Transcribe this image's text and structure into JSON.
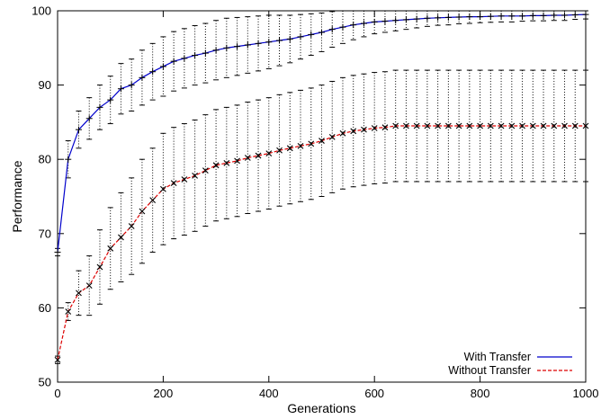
{
  "chart_data": {
    "type": "line",
    "title": "",
    "xlabel": "Generations",
    "ylabel": "Performance",
    "xlim": [
      0,
      1000
    ],
    "ylim": [
      50,
      100
    ],
    "xticks": [
      0,
      200,
      400,
      600,
      800,
      1000
    ],
    "yticks": [
      50,
      60,
      70,
      80,
      90,
      100
    ],
    "grid": false,
    "legend_position": "bottom-right",
    "series": [
      {
        "name": "With Transfer",
        "color": "#0000cc",
        "line_style": "solid",
        "marker": "plus",
        "x": [
          0,
          20,
          40,
          60,
          80,
          100,
          120,
          140,
          160,
          180,
          200,
          220,
          240,
          260,
          280,
          300,
          320,
          340,
          360,
          380,
          400,
          420,
          440,
          460,
          480,
          500,
          520,
          540,
          560,
          580,
          600,
          620,
          640,
          660,
          680,
          700,
          720,
          740,
          760,
          780,
          800,
          820,
          840,
          860,
          880,
          900,
          920,
          940,
          960,
          980,
          1000
        ],
        "y": [
          67.5,
          80,
          84,
          85.5,
          87,
          88,
          89.5,
          90,
          91,
          91.8,
          92.5,
          93.2,
          93.6,
          94,
          94.3,
          94.7,
          95,
          95.2,
          95.4,
          95.6,
          95.8,
          96,
          96.2,
          96.5,
          96.8,
          97.1,
          97.5,
          97.8,
          98.1,
          98.3,
          98.5,
          98.6,
          98.7,
          98.8,
          98.9,
          99,
          99.05,
          99.1,
          99.15,
          99.2,
          99.2,
          99.25,
          99.3,
          99.3,
          99.3,
          99.35,
          99.35,
          99.4,
          99.4,
          99.45,
          99.5
        ],
        "error_half": [
          0.5,
          2.5,
          2.5,
          2.8,
          3,
          3.2,
          3.4,
          3.5,
          3.7,
          3.8,
          4,
          4,
          4,
          4,
          4,
          4,
          4,
          3.9,
          3.8,
          3.7,
          3.6,
          3.4,
          3.2,
          3,
          2.8,
          2.6,
          2.4,
          2.2,
          2,
          1.8,
          1.6,
          1.5,
          1.4,
          1.3,
          1.2,
          1.1,
          1,
          1,
          0.9,
          0.9,
          0.8,
          0.8,
          0.8,
          0.8,
          0.7,
          0.7,
          0.7,
          0.7,
          0.7,
          0.6,
          0.6
        ]
      },
      {
        "name": "Without Transfer",
        "color": "#dd0000",
        "line_style": "dashed",
        "marker": "cross",
        "x": [
          0,
          20,
          40,
          60,
          80,
          100,
          120,
          140,
          160,
          180,
          200,
          220,
          240,
          260,
          280,
          300,
          320,
          340,
          360,
          380,
          400,
          420,
          440,
          460,
          480,
          500,
          520,
          540,
          560,
          580,
          600,
          620,
          640,
          660,
          680,
          700,
          720,
          740,
          760,
          780,
          800,
          820,
          840,
          860,
          880,
          900,
          920,
          940,
          960,
          980,
          1000
        ],
        "y": [
          53,
          59.5,
          62,
          63,
          65.5,
          68,
          69.5,
          71,
          73,
          74.5,
          76,
          76.8,
          77.3,
          77.8,
          78.5,
          79.2,
          79.5,
          79.8,
          80.2,
          80.5,
          80.8,
          81.2,
          81.5,
          81.8,
          82.1,
          82.5,
          83,
          83.5,
          83.8,
          84,
          84.2,
          84.3,
          84.5,
          84.5,
          84.5,
          84.5,
          84.5,
          84.5,
          84.5,
          84.5,
          84.5,
          84.5,
          84.5,
          84.5,
          84.5,
          84.5,
          84.5,
          84.5,
          84.5,
          84.5,
          84.5
        ],
        "error_half": [
          0.5,
          1.2,
          3,
          4,
          5,
          5.5,
          6,
          6.5,
          7,
          7,
          7.5,
          7.5,
          7.5,
          7.5,
          7.5,
          7.5,
          7.5,
          7.5,
          7.5,
          7.5,
          7.5,
          7.5,
          7.5,
          7.5,
          7.5,
          7.5,
          7.5,
          7.5,
          7.5,
          7.5,
          7.5,
          7.5,
          7.5,
          7.5,
          7.5,
          7.5,
          7.5,
          7.5,
          7.5,
          7.5,
          7.5,
          7.5,
          7.5,
          7.5,
          7.5,
          7.5,
          7.5,
          7.5,
          7.5,
          7.5,
          7.5
        ]
      }
    ]
  }
}
